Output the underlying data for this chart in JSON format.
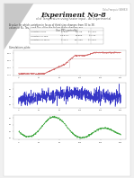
{
  "title": "Experiment No-8",
  "subtitle": "ol of Temperature using heater input - An Experimental",
  "header_text": "Odia Français (SBHS3)",
  "body_text1": "A value for which variation in focus of third step changes from 30 to 38.",
  "body_text2": "values of Kc, Tau_i and Tau_d for the follow thing changes are -",
  "table_header": "Use PID controller",
  "table_col_headers": [
    "",
    "",
    "",
    ""
  ],
  "table_rows": [
    [
      "variation of Kc",
      "$ .877",
      "121.09",
      "$ 1.100"
    ],
    [
      "variation of Taui",
      "38.3 T1",
      "64.960",
      "$ 1.11"
    ],
    [
      "variation of Tau d",
      "$ 41.4",
      "101.909",
      "$ 1.000"
    ]
  ],
  "simulation_title": "Simulations plots",
  "page_background": "#f0f0f0",
  "page_content_bg": "#ffffff",
  "plot1_color": "#d06060",
  "plot1_ref_color": "#c0a0a0",
  "plot2_color": "#2020c0",
  "plot3_color": "#30a030",
  "triangle_color": "#c8c8c8",
  "text_color": "#444444",
  "title_color": "#222222",
  "grid_color": "#dddddd"
}
